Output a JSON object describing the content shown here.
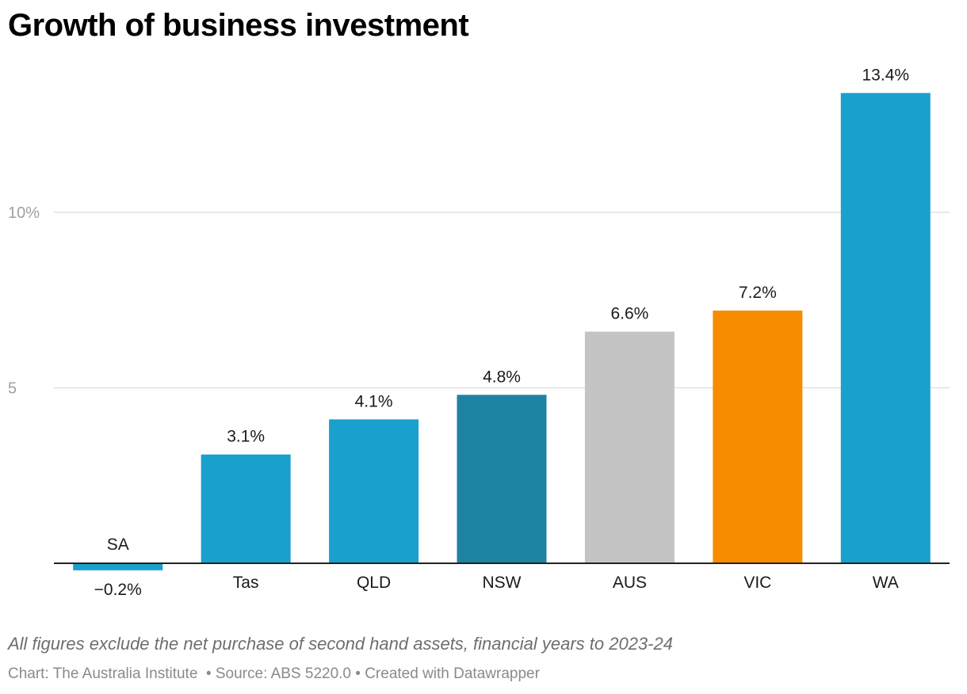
{
  "header": {
    "title": "Growth of business investment"
  },
  "chart_data": {
    "type": "bar",
    "title": "Growth of business investment",
    "categories": [
      "SA",
      "Tas",
      "QLD",
      "NSW",
      "AUS",
      "VIC",
      "WA"
    ],
    "values": [
      -0.2,
      3.1,
      4.1,
      4.8,
      6.6,
      7.2,
      13.4
    ],
    "value_labels": [
      "−0.2%",
      "3.1%",
      "4.1%",
      "4.8%",
      "6.6%",
      "7.2%",
      "13.4%"
    ],
    "bar_colors": [
      "#1aa0cd",
      "#1aa0cd",
      "#1aa0cd",
      "#1e82a3",
      "#c4c4c4",
      "#f78c00",
      "#1aa0cd"
    ],
    "y_ticks": [
      {
        "value": 5,
        "label": "5"
      },
      {
        "value": 10,
        "label": "10%"
      }
    ],
    "ylim": [
      -0.2,
      13.4
    ],
    "grid": true,
    "xlabel": "",
    "ylabel": ""
  },
  "footer": {
    "notes": "All figures exclude the net purchase of second hand assets, financial years to 2023-24",
    "credit": "Chart: The Australia Institute  • Source: ABS 5220.0 • Created with Datawrapper"
  }
}
